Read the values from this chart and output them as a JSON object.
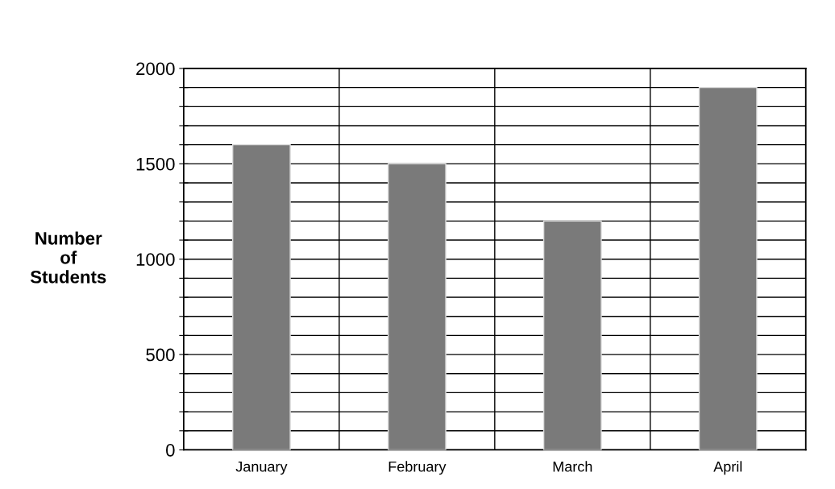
{
  "chart_data": {
    "type": "bar",
    "ylabel": "Number\nof\nStudents",
    "categories": [
      "January",
      "February",
      "March",
      "April"
    ],
    "values": [
      1600,
      1500,
      1200,
      1900
    ],
    "color": "#7a7a7a",
    "ylim": [
      0,
      2000
    ],
    "yticks": [
      0,
      {
        "value": 100,
        "label": null
      },
      {
        "value": 200,
        "label": null
      },
      {
        "value": 300,
        "label": null
      },
      {
        "value": 400,
        "label": null
      },
      500,
      {
        "value": 600,
        "label": null
      },
      {
        "value": 700,
        "label": null
      },
      {
        "value": 800,
        "label": null
      },
      {
        "value": 900,
        "label": null
      },
      1000,
      {
        "value": 1100,
        "label": null
      },
      {
        "value": 1200,
        "label": null
      },
      {
        "value": 1300,
        "label": null
      },
      {
        "value": 1400,
        "label": null
      },
      1500,
      {
        "value": 1600,
        "label": null
      },
      {
        "value": 1700,
        "label": null
      },
      {
        "value": 1800,
        "label": null
      },
      {
        "value": 1900,
        "label": null
      },
      2000
    ],
    "grid": true,
    "legend": false
  }
}
